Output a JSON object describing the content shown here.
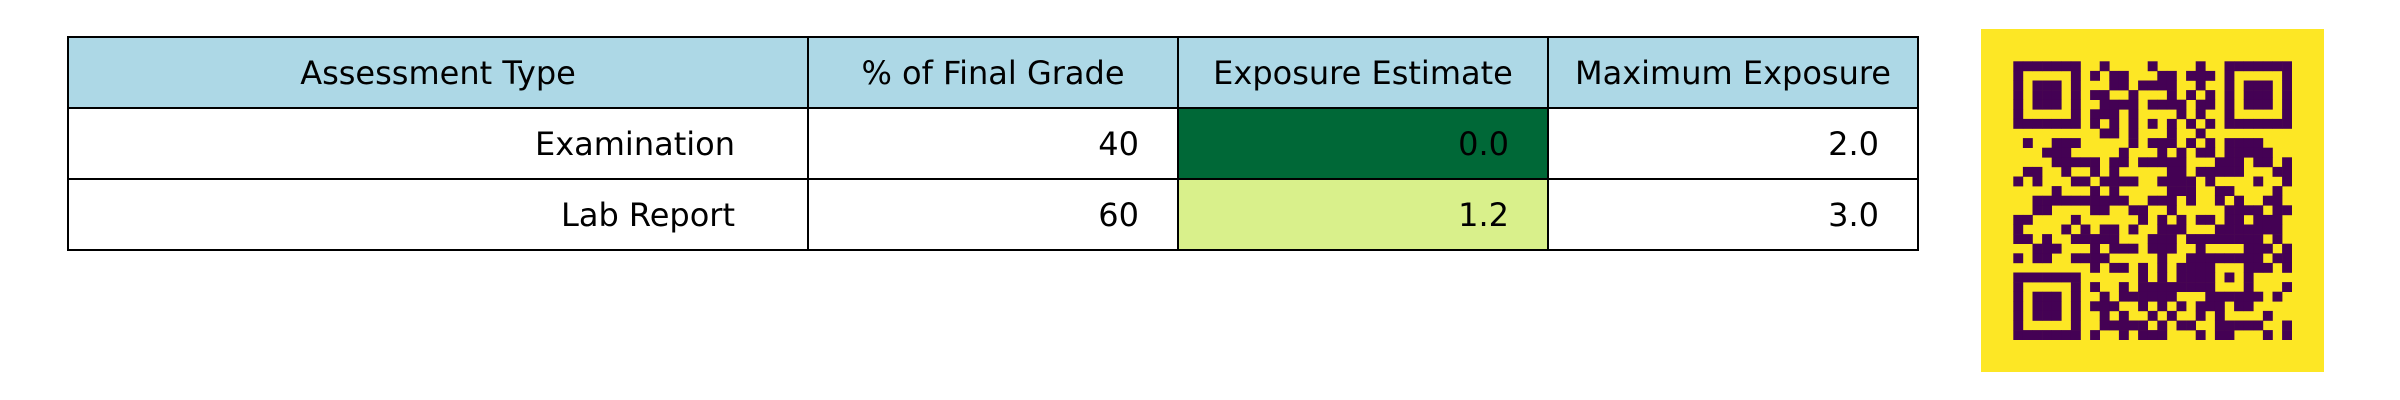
{
  "table": {
    "headers": [
      "Assessment Type",
      "% of Final Grade",
      "Exposure Estimate",
      "Maximum Exposure"
    ],
    "rows": [
      {
        "assessment_type": "Examination",
        "percent_final_grade": "40",
        "exposure_estimate": "0.0",
        "maximum_exposure": "2.0",
        "exposure_color": "#006837"
      },
      {
        "assessment_type": "Lab Report",
        "percent_final_grade": "60",
        "exposure_estimate": "1.2",
        "maximum_exposure": "3.0",
        "exposure_color": "#d9f08b"
      }
    ],
    "header_color": "#add8e6"
  },
  "qr_code": {
    "background_color": "#fde725",
    "module_color": "#440154"
  }
}
